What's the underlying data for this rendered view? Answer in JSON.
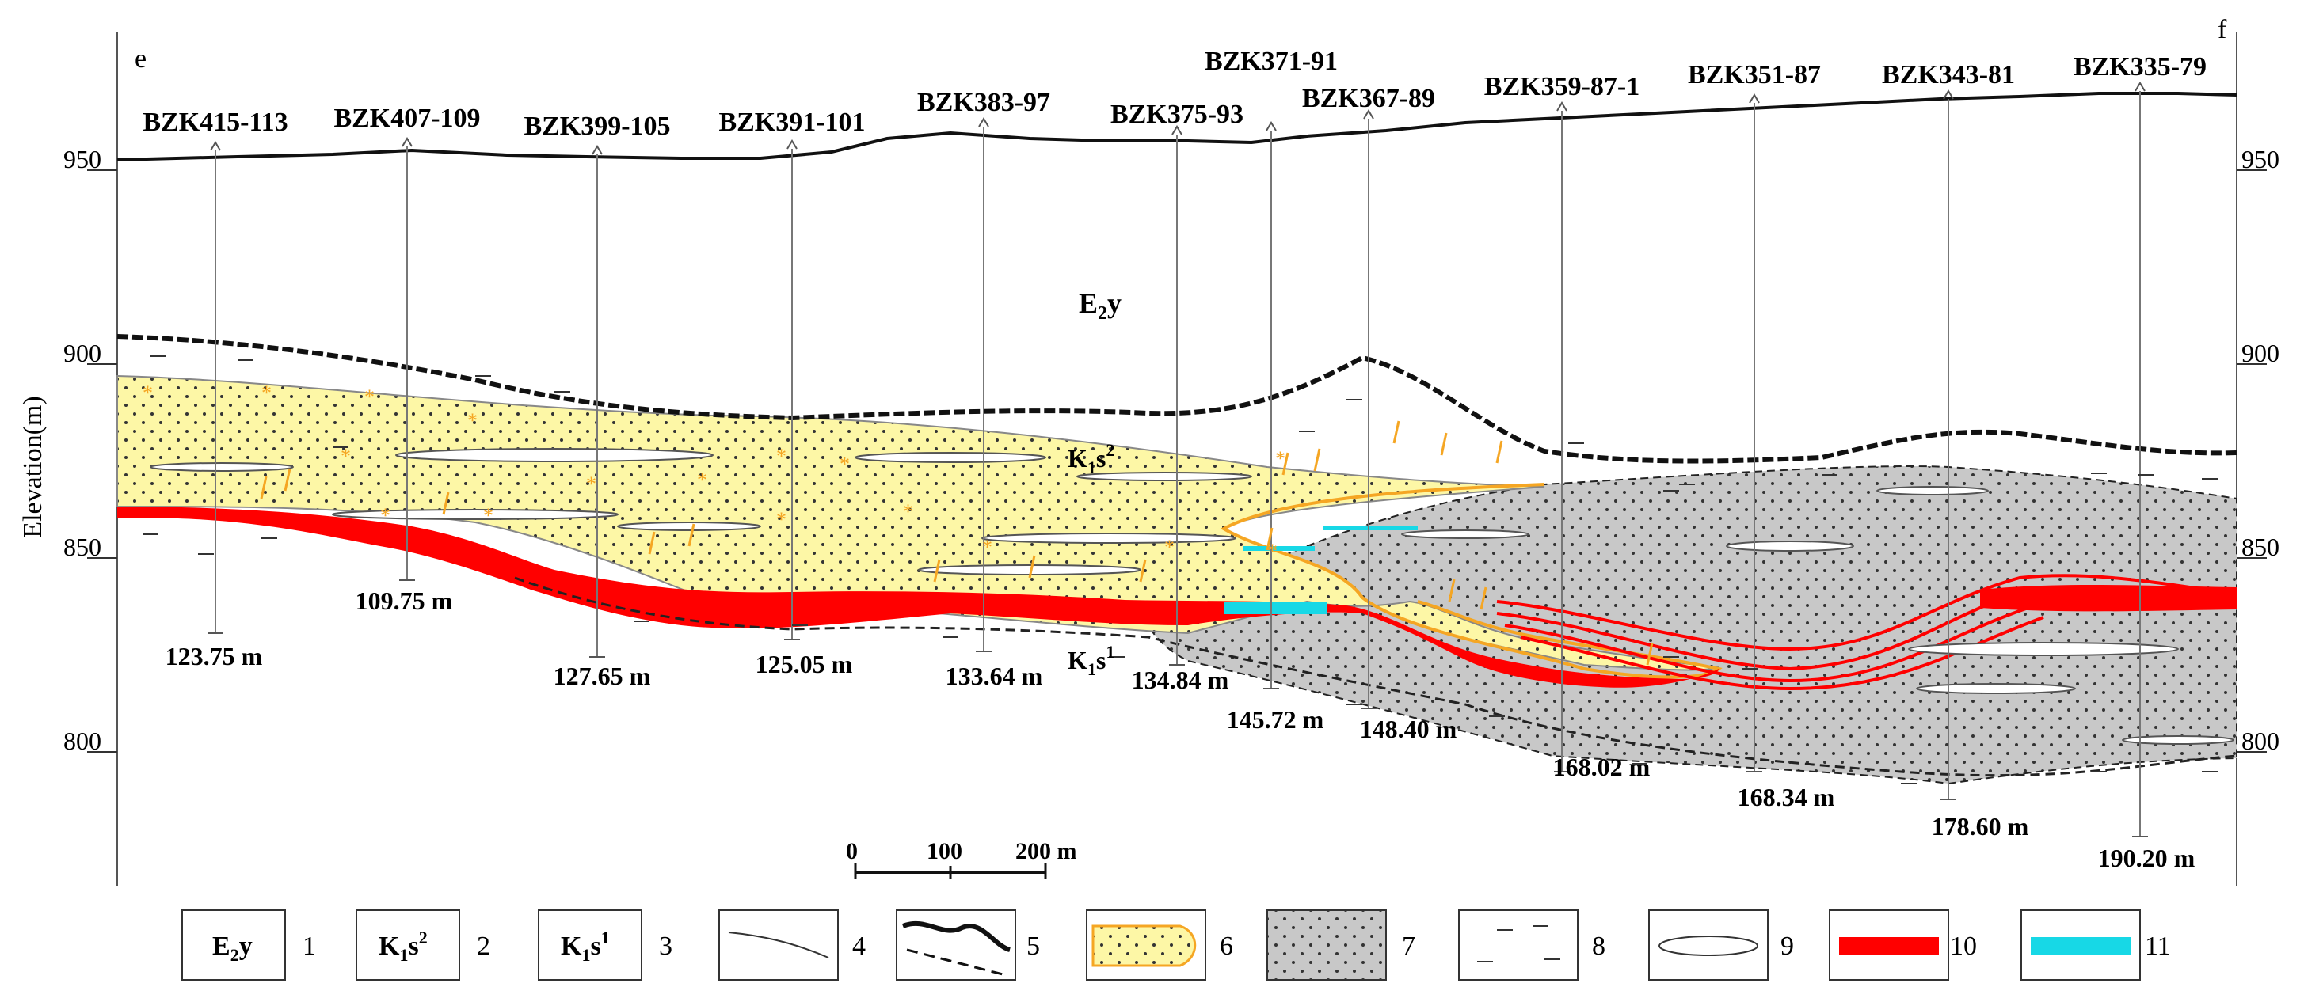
{
  "corners": {
    "left": "e",
    "right": "f"
  },
  "axis": {
    "ylabel": "Elevation(m)",
    "ticks_left": [
      "950",
      "900",
      "850",
      "800"
    ],
    "ticks_right": [
      "950",
      "900",
      "850",
      "800"
    ]
  },
  "boreholes": [
    {
      "name": "BZK415-113",
      "depth": "123.75 m"
    },
    {
      "name": "BZK407-109",
      "depth": "109.75 m"
    },
    {
      "name": "BZK399-105",
      "depth": "127.65 m"
    },
    {
      "name": "BZK391-101",
      "depth": "125.05 m"
    },
    {
      "name": "BZK383-97",
      "depth": "133.64 m"
    },
    {
      "name": "BZK375-93",
      "depth": "134.84 m"
    },
    {
      "name": "BZK371-91",
      "depth": "145.72 m"
    },
    {
      "name": "BZK367-89",
      "depth": "148.40 m"
    },
    {
      "name": "BZK359-87-1",
      "depth": "168.02 m"
    },
    {
      "name": "BZK351-87",
      "depth": "168.34 m"
    },
    {
      "name": "BZK343-81",
      "depth": "178.60 m"
    },
    {
      "name": "BZK335-79",
      "depth": "190.20 m"
    }
  ],
  "units": {
    "e2y": {
      "main": "E",
      "sub": "2",
      "suffix": "y"
    },
    "k1s2": {
      "main": "K",
      "sub": "1",
      "mid": "s",
      "sup": "2"
    },
    "k1s1": {
      "main": "K",
      "sub": "1",
      "mid": "s",
      "sup": "1"
    }
  },
  "scale_bar": {
    "labels": [
      "0",
      "100",
      "200 m"
    ]
  },
  "legend": {
    "numbers": [
      "1",
      "2",
      "3",
      "4",
      "5",
      "6",
      "7",
      "8",
      "9",
      "10",
      "11"
    ]
  },
  "colors": {
    "yellow": "#fdf7a6",
    "gray": "#c8c8c8",
    "ore_red": "#ff0000",
    "cyan": "#17d8e6",
    "orange": "#f5a623"
  }
}
